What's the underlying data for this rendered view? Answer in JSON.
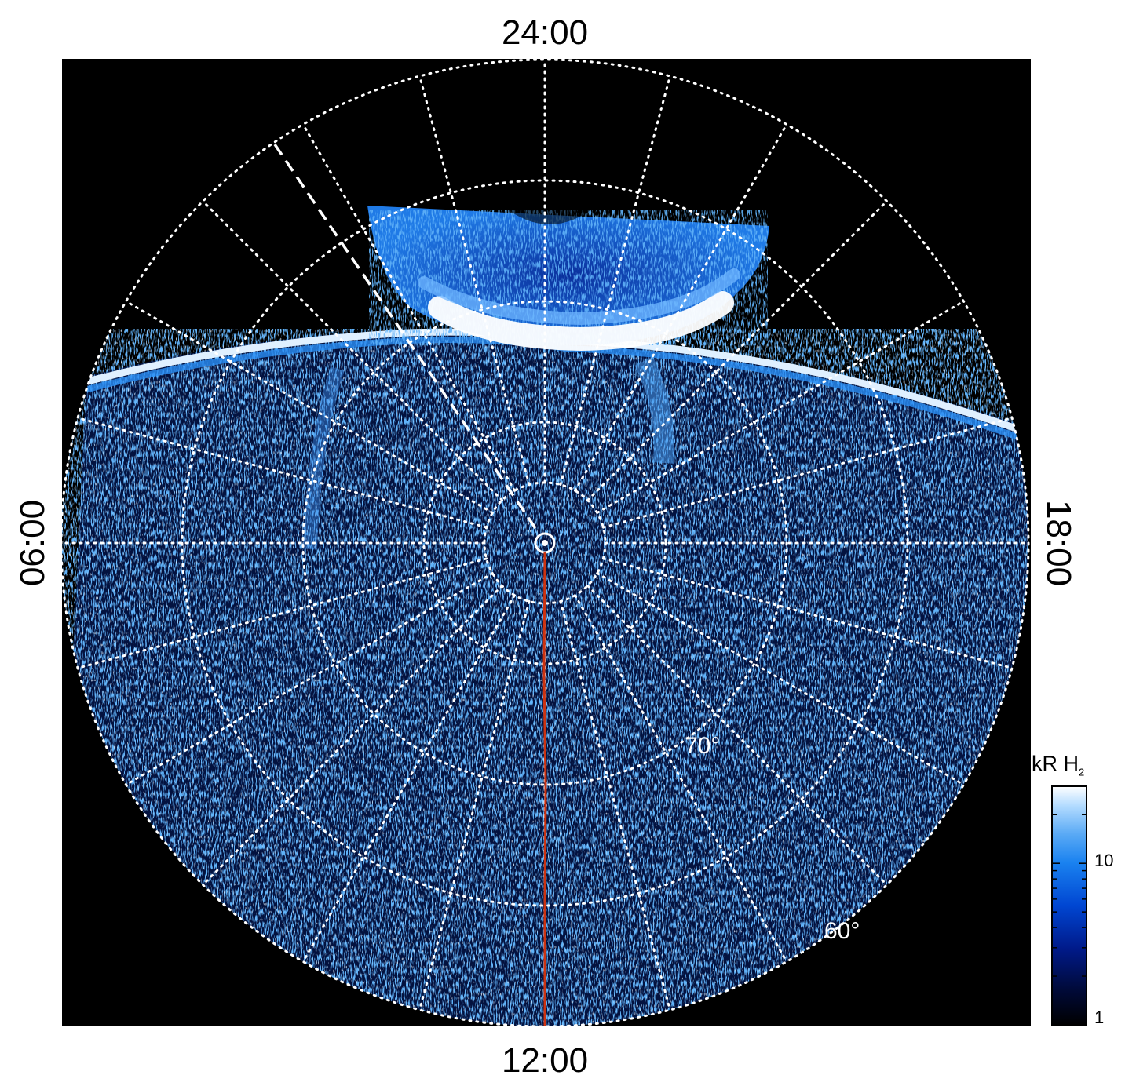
{
  "local_time_labels": {
    "top": "24:00",
    "bottom": "12:00",
    "left": "06:00",
    "right": "18:00"
  },
  "latitude_labels": [
    {
      "text": "70°",
      "latitude_deg": 70
    },
    {
      "text": "60°",
      "latitude_deg": 60
    }
  ],
  "colorbar": {
    "title": "kR H",
    "title_subscript": "2",
    "scale": "log",
    "range": [
      1,
      30
    ],
    "tick_labels": [
      {
        "text": "10",
        "value": 10
      },
      {
        "text": "1",
        "value": 1
      }
    ],
    "colors": [
      "#000000",
      "#000a3a",
      "#001a8a",
      "#0046d2",
      "#1a82f0",
      "#5aaaf5",
      "#b4dcff",
      "#ffffff"
    ]
  },
  "projection": {
    "type": "polar",
    "outer_latitude_deg": 50,
    "grid_latitudes_deg": [
      60,
      70,
      80,
      85
    ],
    "meridian_step_hours": 1
  },
  "colors": {
    "background": "#000000",
    "grid": "#ffffff",
    "meridian_line": "#cc3311",
    "frame": "#ffffff"
  }
}
